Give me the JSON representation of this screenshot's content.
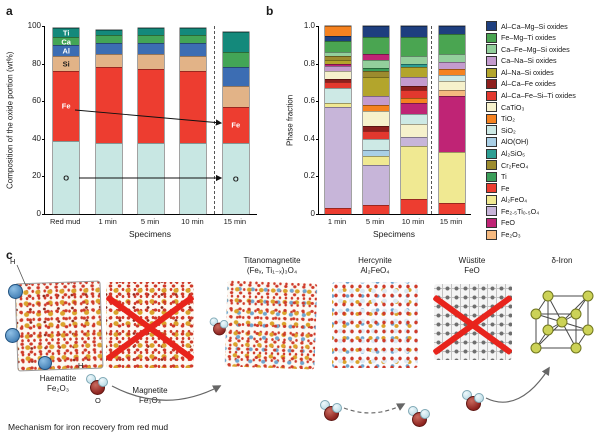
{
  "figure": {
    "panel_a_label": "a",
    "panel_b_label": "b",
    "panel_c_label": "c"
  },
  "panel_a": {
    "ylabel": "Composition of the oxide portion (wt%)",
    "xlabel": "Specimens",
    "yticks": [
      "0",
      "20",
      "40",
      "60",
      "80",
      "100"
    ],
    "elements": [
      {
        "key": "O",
        "color": "#c8e7e3",
        "label_color": "#1a1a1a"
      },
      {
        "key": "Fe",
        "color": "#ed3d30",
        "label_color": "#ffffff"
      },
      {
        "key": "Si",
        "color": "#e2b387",
        "label_color": "#1a1a1a"
      },
      {
        "key": "Al",
        "color": "#3c6db3",
        "label_color": "#ffffff"
      },
      {
        "key": "Ca",
        "color": "#43a556",
        "label_color": "#ffffff"
      },
      {
        "key": "Ti",
        "color": "#14897b",
        "label_color": "#ffffff"
      }
    ],
    "specimens": [
      "Red mud",
      "1 min",
      "5 min",
      "10 min",
      "15 min"
    ],
    "values": {
      "Red mud": [
        39,
        37,
        8,
        6,
        4,
        5
      ],
      "1 min": [
        38,
        40,
        7,
        6,
        4,
        3
      ],
      "5 min": [
        38,
        39,
        8,
        6,
        4,
        4
      ],
      "10 min": [
        38,
        38,
        8,
        7,
        4,
        4
      ],
      "15 min": [
        38,
        19,
        11,
        10,
        8,
        11
      ]
    },
    "in_bar_labels": {
      "Red mud": [
        "O",
        "Fe",
        "Si",
        "Al",
        "Ca",
        "Ti"
      ],
      "15 min": [
        "O",
        "Fe"
      ]
    }
  },
  "panel_b": {
    "ylabel": "Phase fraction",
    "xlabel": "Specimens",
    "yticks": [
      "0",
      "0.2",
      "0.4",
      "0.6",
      "0.8",
      "1.0"
    ],
    "legend": [
      {
        "label": "Al–Ca–Mg–Si oxides",
        "color": "#1e3f7f"
      },
      {
        "label": "Fe–Mg–Ti oxides",
        "color": "#4aa551"
      },
      {
        "label": "Ca–Fe–Mg–Si oxides",
        "color": "#93cf9c"
      },
      {
        "label": "Ca–Na–Si oxides",
        "color": "#c49bce"
      },
      {
        "label": "Al–Na–Si oxides",
        "color": "#b3a52c"
      },
      {
        "label": "Al–Ca–Fe oxides",
        "color": "#8e1f1d"
      },
      {
        "label": "Al–Ca–Fe–Si–Ti oxides",
        "color": "#e2382e"
      },
      {
        "label": "CaTiO₃",
        "color": "#f6f1cc"
      },
      {
        "label": "TiO₂",
        "color": "#f58220"
      },
      {
        "label": "SiO₂",
        "color": "#cde9e5"
      },
      {
        "label": "AlO(OH)",
        "color": "#a9cfe6"
      },
      {
        "label": "Al₂SiO₅",
        "color": "#2d9e93"
      },
      {
        "label": "Cr₂FeO₄",
        "color": "#9c8b2e"
      },
      {
        "label": "Ti",
        "color": "#3b9e5a"
      },
      {
        "label": "Fe",
        "color": "#ed3d30"
      },
      {
        "label": "Al₂FeO₄",
        "color": "#f0e992"
      },
      {
        "label": "Fe₂.₅Ti₀.₅O₄",
        "color": "#c7b5d9"
      },
      {
        "label": "FeO",
        "color": "#bf2475"
      },
      {
        "label": "Fe₂O₃",
        "color": "#f5b97f"
      }
    ],
    "specimens": [
      "1 min",
      "5 min",
      "10 min",
      "15 min"
    ],
    "bars": {
      "1 min": [
        [
          14,
          0.03
        ],
        [
          16,
          0.54
        ],
        [
          15,
          0.02
        ],
        [
          9,
          0.08
        ],
        [
          6,
          0.03
        ],
        [
          5,
          0.02
        ],
        [
          7,
          0.04
        ],
        [
          3,
          0.03
        ],
        [
          17,
          0.01
        ],
        [
          4,
          0.02
        ],
        [
          12,
          0.02
        ],
        [
          2,
          0.02
        ],
        [
          1,
          0.06
        ],
        [
          0,
          0.03
        ],
        [
          8,
          0.05
        ]
      ],
      "5 min": [
        [
          14,
          0.05
        ],
        [
          16,
          0.21
        ],
        [
          15,
          0.05
        ],
        [
          10,
          0.03
        ],
        [
          9,
          0.06
        ],
        [
          6,
          0.04
        ],
        [
          5,
          0.03
        ],
        [
          7,
          0.08
        ],
        [
          8,
          0.03
        ],
        [
          3,
          0.05
        ],
        [
          4,
          0.1
        ],
        [
          12,
          0.03
        ],
        [
          13,
          0.02
        ],
        [
          2,
          0.04
        ],
        [
          17,
          0.03
        ],
        [
          1,
          0.09
        ],
        [
          0,
          0.06
        ]
      ],
      "10 min": [
        [
          14,
          0.08
        ],
        [
          15,
          0.28
        ],
        [
          16,
          0.05
        ],
        [
          7,
          0.07
        ],
        [
          9,
          0.05
        ],
        [
          17,
          0.06
        ],
        [
          8,
          0.03
        ],
        [
          6,
          0.04
        ],
        [
          5,
          0.02
        ],
        [
          3,
          0.05
        ],
        [
          4,
          0.05
        ],
        [
          11,
          0.02
        ],
        [
          2,
          0.04
        ],
        [
          1,
          0.1
        ],
        [
          0,
          0.06
        ]
      ],
      "15 min": [
        [
          14,
          0.06
        ],
        [
          15,
          0.27
        ],
        [
          17,
          0.3
        ],
        [
          18,
          0.03
        ],
        [
          7,
          0.05
        ],
        [
          9,
          0.03
        ],
        [
          8,
          0.03
        ],
        [
          3,
          0.04
        ],
        [
          2,
          0.04
        ],
        [
          1,
          0.11
        ],
        [
          0,
          0.04
        ]
      ]
    }
  },
  "panel_c": {
    "caption": "Mechanism for iron recovery from red mud",
    "atom_labels": {
      "haematite_h": "H",
      "water_h": "H",
      "water_o": "O"
    },
    "structures": [
      {
        "name": "Haematite",
        "formula": "Fe₂O₃"
      },
      {
        "name": "Magnetite",
        "formula": "Fe₃O₄"
      },
      {
        "name": "Titanomagnetite",
        "formula": "(Feₓ, Ti₁₋ₓ)₃O₄"
      },
      {
        "name": "Hercynite",
        "formula": "Al₂FeO₄"
      },
      {
        "name": "Wüstite",
        "formula": "FeO"
      },
      {
        "name": "δ-Iron",
        "formula": ""
      }
    ]
  },
  "chart_data": [
    {
      "type": "bar",
      "stacked": true,
      "panel": "a",
      "ylabel": "Composition of the oxide portion (wt%)",
      "xlabel": "Specimens",
      "ylim": [
        0,
        100
      ],
      "categories": [
        "Red mud",
        "1 min",
        "5 min",
        "10 min",
        "15 min"
      ],
      "series": [
        {
          "name": "O",
          "values": [
            39,
            38,
            38,
            38,
            38
          ]
        },
        {
          "name": "Fe",
          "values": [
            37,
            40,
            39,
            38,
            19
          ]
        },
        {
          "name": "Si",
          "values": [
            8,
            7,
            8,
            8,
            11
          ]
        },
        {
          "name": "Al",
          "values": [
            6,
            6,
            6,
            7,
            10
          ]
        },
        {
          "name": "Ca",
          "values": [
            4,
            4,
            4,
            4,
            8
          ]
        },
        {
          "name": "Ti",
          "values": [
            5,
            3,
            4,
            4,
            11
          ]
        }
      ]
    },
    {
      "type": "bar",
      "stacked": true,
      "panel": "b",
      "ylabel": "Phase fraction",
      "xlabel": "Specimens",
      "ylim": [
        0,
        1
      ],
      "categories": [
        "1 min",
        "5 min",
        "10 min",
        "15 min"
      ],
      "series": [
        {
          "name": "Al–Ca–Mg–Si oxides",
          "values": [
            0.03,
            0.06,
            0.06,
            0.04
          ]
        },
        {
          "name": "Fe–Mg–Ti oxides",
          "values": [
            0.06,
            0.09,
            0.1,
            0.11
          ]
        },
        {
          "name": "Ca–Fe–Mg–Si oxides",
          "values": [
            0.02,
            0.04,
            0.04,
            0.04
          ]
        },
        {
          "name": "Ca–Na–Si oxides",
          "values": [
            0.03,
            0.05,
            0.05,
            0.04
          ]
        },
        {
          "name": "Al–Na–Si oxides",
          "values": [
            0.02,
            0.1,
            0.05,
            0
          ]
        },
        {
          "name": "Al–Ca–Fe oxides",
          "values": [
            0.02,
            0.03,
            0.02,
            0
          ]
        },
        {
          "name": "Al–Ca–Fe–Si–Ti oxides",
          "values": [
            0.03,
            0.04,
            0.04,
            0
          ]
        },
        {
          "name": "CaTiO₃",
          "values": [
            0.04,
            0.08,
            0.07,
            0.05
          ]
        },
        {
          "name": "TiO₂",
          "values": [
            0.05,
            0.03,
            0.03,
            0.03
          ]
        },
        {
          "name": "SiO₂",
          "values": [
            0.08,
            0.06,
            0.05,
            0.03
          ]
        },
        {
          "name": "AlO(OH)",
          "values": [
            0,
            0.03,
            0,
            0
          ]
        },
        {
          "name": "Al₂SiO₅",
          "values": [
            0,
            0,
            0.02,
            0
          ]
        },
        {
          "name": "Cr₂FeO₄",
          "values": [
            0.02,
            0.03,
            0,
            0
          ]
        },
        {
          "name": "Ti",
          "values": [
            0,
            0.02,
            0,
            0
          ]
        },
        {
          "name": "Fe",
          "values": [
            0.03,
            0.05,
            0.08,
            0.06
          ]
        },
        {
          "name": "Al₂FeO₄",
          "values": [
            0.02,
            0.05,
            0.28,
            0.27
          ]
        },
        {
          "name": "Fe₂.₅Ti₀.₅O₄",
          "values": [
            0.54,
            0.21,
            0.05,
            0
          ]
        },
        {
          "name": "FeO",
          "values": [
            0.01,
            0.03,
            0.06,
            0.3
          ]
        },
        {
          "name": "Fe₂O₃",
          "values": [
            0,
            0,
            0,
            0.03
          ]
        }
      ]
    }
  ]
}
